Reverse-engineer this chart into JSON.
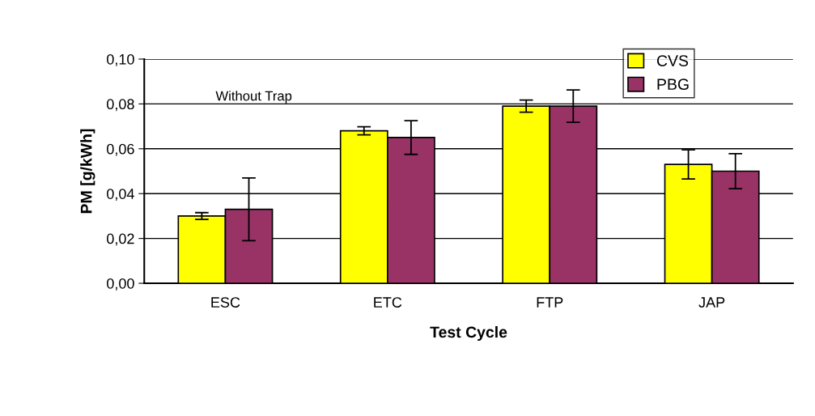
{
  "chart_data": {
    "type": "bar",
    "xlabel": "Test Cycle",
    "ylabel": "PM [g/kWh]",
    "categories": [
      "ESC",
      "ETC",
      "FTP",
      "JAP"
    ],
    "series": [
      {
        "name": "CVS",
        "color": "#ffff00",
        "values": [
          0.03,
          0.068,
          0.079,
          0.053
        ],
        "errors": [
          0.0015,
          0.0018,
          0.0027,
          0.0065
        ]
      },
      {
        "name": "PBG",
        "color": "#993366",
        "values": [
          0.033,
          0.065,
          0.079,
          0.05
        ],
        "errors": [
          0.014,
          0.0075,
          0.0072,
          0.0078
        ]
      }
    ],
    "ylim": [
      0,
      0.1
    ],
    "yticks": [
      {
        "value": 0,
        "label": "0,00"
      },
      {
        "value": 0.02,
        "label": "0,02"
      },
      {
        "value": 0.04,
        "label": "0,04"
      },
      {
        "value": 0.06,
        "label": "0,06"
      },
      {
        "value": 0.08,
        "label": "0,08"
      },
      {
        "value": 0.1,
        "label": "0,10"
      }
    ],
    "grid": "y",
    "legend": "top right",
    "annotations": [
      "Without Trap"
    ]
  }
}
